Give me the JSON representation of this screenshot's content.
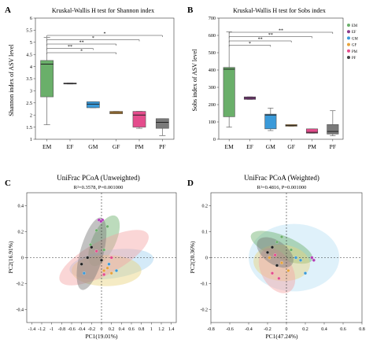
{
  "panels": {
    "A": {
      "letter": "A"
    },
    "B": {
      "letter": "B"
    },
    "C": {
      "letter": "C"
    },
    "D": {
      "letter": "D"
    }
  },
  "chart_data": [
    {
      "id": "A",
      "type": "box",
      "title": "Kruskal-Wallis H test for Shannon index",
      "ylabel": "Shannon index of ASV level",
      "ylim": [
        1,
        6
      ],
      "yticks": [
        1,
        1.5,
        2,
        2.5,
        3,
        3.5,
        4,
        4.5,
        5,
        5.5,
        6
      ],
      "categories": [
        "EM",
        "EF",
        "GM",
        "GF",
        "PM",
        "PF"
      ],
      "boxes": [
        {
          "category": "EM",
          "min": 1.6,
          "q1": 2.75,
          "median": 4.1,
          "q3": 4.25,
          "max": 5.2,
          "color": "#6aaf6a"
        },
        {
          "category": "EF",
          "min": 3.28,
          "q1": 3.28,
          "median": 3.3,
          "q3": 3.32,
          "max": 3.32,
          "color": "#8b3a8b"
        },
        {
          "category": "GM",
          "min": 2.3,
          "q1": 2.3,
          "median": 2.45,
          "q3": 2.55,
          "max": 2.55,
          "color": "#3a9ad9"
        },
        {
          "category": "GF",
          "min": 2.05,
          "q1": 2.05,
          "median": 2.1,
          "q3": 2.15,
          "max": 2.15,
          "color": "#e8a33c"
        },
        {
          "category": "PM",
          "min": 1.45,
          "q1": 1.5,
          "median": 2.0,
          "q3": 2.15,
          "max": 2.15,
          "color": "#e44c8c"
        },
        {
          "category": "PF",
          "min": 1.15,
          "q1": 1.45,
          "median": 1.7,
          "q3": 1.85,
          "max": 1.85,
          "color": "#7a7a7a"
        }
      ],
      "brackets": [
        {
          "from": "EM",
          "to": "PF",
          "label": "*"
        },
        {
          "from": "EM",
          "to": "PM",
          "label": "*"
        },
        {
          "from": "EM",
          "to": "GF",
          "label": "**"
        },
        {
          "from": "EM",
          "to": "GM",
          "label": "**"
        },
        {
          "from": "EM",
          "to": "GF",
          "label": "*"
        }
      ]
    },
    {
      "id": "B",
      "type": "box",
      "title": "Kruskal-Wallis H test for Sobs index",
      "ylabel": "Sobs index of ASV level",
      "ylim": [
        0,
        700
      ],
      "yticks": [
        0,
        100,
        200,
        300,
        400,
        500,
        600,
        700
      ],
      "categories": [
        "EM",
        "EF",
        "GM",
        "GF",
        "PM",
        "PF"
      ],
      "boxes": [
        {
          "category": "EM",
          "min": 70,
          "q1": 130,
          "median": 405,
          "q3": 415,
          "max": 620,
          "color": "#6aaf6a"
        },
        {
          "category": "EF",
          "min": 230,
          "q1": 230,
          "median": 238,
          "q3": 245,
          "max": 245,
          "color": "#8b3a8b"
        },
        {
          "category": "GM",
          "min": 50,
          "q1": 60,
          "median": 140,
          "q3": 145,
          "max": 180,
          "color": "#3a9ad9"
        },
        {
          "category": "GF",
          "min": 75,
          "q1": 75,
          "median": 80,
          "q3": 85,
          "max": 85,
          "color": "#e8a33c"
        },
        {
          "category": "PM",
          "min": 35,
          "q1": 35,
          "median": 40,
          "q3": 60,
          "max": 60,
          "color": "#e44c8c"
        },
        {
          "category": "PF",
          "min": 20,
          "q1": 30,
          "median": 45,
          "q3": 85,
          "max": 165,
          "color": "#7a7a7a"
        }
      ],
      "brackets": [
        {
          "from": "EM",
          "to": "PF",
          "label": "**"
        },
        {
          "from": "EM",
          "to": "PM",
          "label": "**"
        },
        {
          "from": "EM",
          "to": "GF",
          "label": "**"
        },
        {
          "from": "EM",
          "to": "GM",
          "label": "*"
        }
      ],
      "legend": {
        "placement": "right",
        "entries": [
          {
            "label": "EM",
            "color": "#6aaf6a"
          },
          {
            "label": "EF",
            "color": "#8b3a8b"
          },
          {
            "label": "GM",
            "color": "#3a9ad9"
          },
          {
            "label": "GF",
            "color": "#e8a33c"
          },
          {
            "label": "PM",
            "color": "#e44c8c"
          },
          {
            "label": "PF",
            "color": "#444444"
          }
        ]
      }
    },
    {
      "id": "C",
      "type": "scatter",
      "title": "UniFrac PCoA (Unweighted)",
      "subtitle": "R²=0.3578, P=0.001000",
      "xlabel": "PC1(19.01%)",
      "ylabel": "PC2(16.91%)",
      "xlim": [
        -1.5,
        1.5
      ],
      "ylim": [
        -0.5,
        0.5
      ],
      "xticks": [
        -1.4,
        -1.2,
        -1,
        -0.8,
        -0.6,
        -0.4,
        -0.2,
        0,
        0.2,
        0.4,
        0.6,
        0.8,
        1,
        1.2,
        1.4
      ],
      "yticks": [
        -0.4,
        -0.2,
        0,
        0.2,
        0.4
      ],
      "ellipses": [
        {
          "group": "EM",
          "cx": 0.05,
          "cy": 0.13,
          "rx": 0.55,
          "ry": 0.09,
          "angle": 65,
          "color": "#6aaf6a"
        },
        {
          "group": "GM",
          "cx": 0.2,
          "cy": -0.05,
          "rx": 0.85,
          "ry": 0.11,
          "angle": 8,
          "color": "#9fd0ef"
        },
        {
          "group": "GF",
          "cx": 0.1,
          "cy": -0.1,
          "rx": 0.7,
          "ry": 0.12,
          "angle": 0,
          "color": "#e9d27c"
        },
        {
          "group": "PM",
          "cx": 0.05,
          "cy": 0.0,
          "rx": 1.0,
          "ry": 0.13,
          "angle": 28,
          "color": "#f5a5a5"
        },
        {
          "group": "PF",
          "cx": -0.2,
          "cy": 0.03,
          "rx": 0.75,
          "ry": 0.09,
          "angle": 75,
          "color": "#777777"
        }
      ],
      "points": [
        {
          "group": "EF",
          "x": -0.05,
          "y": 0.29,
          "color": "#b23cb8"
        },
        {
          "group": "EF",
          "x": 0.02,
          "y": 0.29,
          "color": "#b23cb8"
        },
        {
          "group": "EF",
          "x": -0.01,
          "y": 0.28,
          "color": "#b23cb8"
        },
        {
          "group": "EM",
          "x": 0.12,
          "y": 0.24,
          "color": "#6aaf6a"
        },
        {
          "group": "EM",
          "x": -0.1,
          "y": 0.21,
          "color": "#6aaf6a"
        },
        {
          "group": "EM",
          "x": -0.22,
          "y": 0.1,
          "color": "#6aaf6a"
        },
        {
          "group": "EM",
          "x": 0.05,
          "y": 0.06,
          "color": "#6aaf6a"
        },
        {
          "group": "GM",
          "x": 0.3,
          "y": -0.1,
          "color": "#3a9ad9"
        },
        {
          "group": "GM",
          "x": -0.35,
          "y": -0.12,
          "color": "#3a9ad9"
        },
        {
          "group": "GM",
          "x": 0.15,
          "y": -0.05,
          "color": "#3a9ad9"
        },
        {
          "group": "GF",
          "x": 0.12,
          "y": -0.08,
          "color": "#e8a33c"
        },
        {
          "group": "GF",
          "x": 0.2,
          "y": -0.12,
          "color": "#e8a33c"
        },
        {
          "group": "GF",
          "x": 0.05,
          "y": -0.1,
          "color": "#e8a33c"
        },
        {
          "group": "PM",
          "x": -0.1,
          "y": 0.05,
          "color": "#e44c8c"
        },
        {
          "group": "PM",
          "x": 0.2,
          "y": 0.0,
          "color": "#e44c8c"
        },
        {
          "group": "PM",
          "x": 0.05,
          "y": -0.13,
          "color": "#e44c8c"
        },
        {
          "group": "PF",
          "x": -0.2,
          "y": 0.08,
          "color": "#222222"
        },
        {
          "group": "PF",
          "x": -0.28,
          "y": 0.0,
          "color": "#222222"
        },
        {
          "group": "PF",
          "x": -0.4,
          "y": -0.05,
          "color": "#222222"
        },
        {
          "group": "PF",
          "x": 0.0,
          "y": -0.02,
          "color": "#222222"
        }
      ]
    },
    {
      "id": "D",
      "type": "scatter",
      "title": "UniFrac PCoA (Weighted)",
      "subtitle": "R²=0.4816, P=0.001000",
      "xlabel": "PC1(47.24%)",
      "ylabel": "PC2(20.36%)",
      "xlim": [
        -0.8,
        0.8
      ],
      "ylim": [
        -0.25,
        0.25
      ],
      "xticks": [
        -0.8,
        -0.6,
        -0.4,
        -0.2,
        0,
        0.2,
        0.4,
        0.6,
        0.8
      ],
      "yticks": [
        -0.2,
        -0.1,
        0,
        0.1,
        0.2
      ],
      "ellipses": [
        {
          "group": "GM",
          "cx": 0.08,
          "cy": 0.0,
          "rx": 0.48,
          "ry": 0.13,
          "angle": 0,
          "color": "#b7e0f5"
        },
        {
          "group": "EM",
          "cx": -0.05,
          "cy": 0.04,
          "rx": 0.35,
          "ry": 0.045,
          "angle": -22,
          "color": "#6aaf6a"
        },
        {
          "group": "GF",
          "cx": -0.05,
          "cy": -0.02,
          "rx": 0.3,
          "ry": 0.07,
          "angle": -5,
          "color": "#e9d27c"
        },
        {
          "group": "PM",
          "cx": -0.1,
          "cy": -0.05,
          "rx": 0.26,
          "ry": 0.06,
          "angle": -60,
          "color": "#f5a5a5"
        },
        {
          "group": "PF",
          "cx": -0.12,
          "cy": 0.02,
          "rx": 0.22,
          "ry": 0.045,
          "angle": -35,
          "color": "#777777"
        }
      ],
      "points": [
        {
          "group": "EF",
          "x": 0.27,
          "y": 0.0,
          "color": "#b23cb8"
        },
        {
          "group": "EF",
          "x": 0.29,
          "y": -0.01,
          "color": "#b23cb8"
        },
        {
          "group": "EM",
          "x": -0.1,
          "y": 0.06,
          "color": "#6aaf6a"
        },
        {
          "group": "EM",
          "x": 0.05,
          "y": 0.03,
          "color": "#6aaf6a"
        },
        {
          "group": "EM",
          "x": -0.05,
          "y": 0.08,
          "color": "#6aaf6a"
        },
        {
          "group": "GM",
          "x": 0.15,
          "y": -0.01,
          "color": "#3a9ad9"
        },
        {
          "group": "GM",
          "x": 0.1,
          "y": 0.0,
          "color": "#3a9ad9"
        },
        {
          "group": "GM",
          "x": 0.2,
          "y": -0.06,
          "color": "#3a9ad9"
        },
        {
          "group": "GF",
          "x": -0.18,
          "y": 0.0,
          "color": "#e8a33c"
        },
        {
          "group": "GF",
          "x": -0.05,
          "y": -0.02,
          "color": "#e8a33c"
        },
        {
          "group": "GF",
          "x": 0.02,
          "y": -0.05,
          "color": "#e8a33c"
        },
        {
          "group": "PM",
          "x": -0.15,
          "y": -0.06,
          "color": "#e44c8c"
        },
        {
          "group": "PM",
          "x": -0.08,
          "y": -0.08,
          "color": "#e44c8c"
        },
        {
          "group": "PM",
          "x": -0.12,
          "y": 0.01,
          "color": "#e44c8c"
        },
        {
          "group": "PF",
          "x": -0.2,
          "y": 0.02,
          "color": "#222222"
        },
        {
          "group": "PF",
          "x": -0.15,
          "y": 0.04,
          "color": "#222222"
        },
        {
          "group": "PF",
          "x": -0.1,
          "y": -0.03,
          "color": "#222222"
        }
      ]
    }
  ]
}
